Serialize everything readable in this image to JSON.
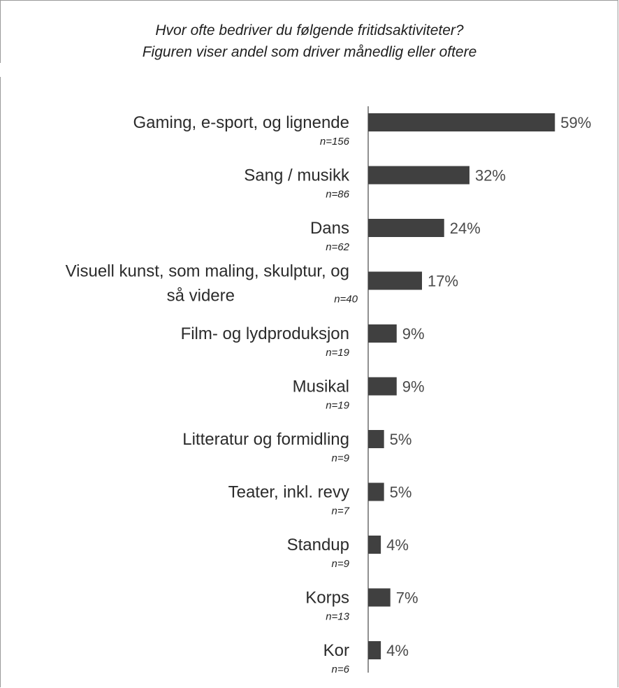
{
  "chart_data": {
    "type": "bar",
    "orientation": "horizontal",
    "title_lines": [
      "Hvor ofte bedriver du følgende fritidsaktiviteter?",
      "Figuren viser andel som driver månedlig eller oftere"
    ],
    "categories": [
      {
        "label_lines": [
          "Gaming, e-sport, og lignende"
        ],
        "n": "n=156",
        "value": 59,
        "value_label": "59%"
      },
      {
        "label_lines": [
          "Sang / musikk"
        ],
        "n": "n=86",
        "value": 32,
        "value_label": "32%"
      },
      {
        "label_lines": [
          "Dans"
        ],
        "n": "n=62",
        "value": 24,
        "value_label": "24%"
      },
      {
        "label_lines": [
          "Visuell kunst, som maling, skulptur, og",
          "så videre"
        ],
        "n": "n=40",
        "value": 17,
        "value_label": "17%"
      },
      {
        "label_lines": [
          "Film- og lydproduksjon"
        ],
        "n": "n=19",
        "value": 9,
        "value_label": "9%"
      },
      {
        "label_lines": [
          "Musikal"
        ],
        "n": "n=19",
        "value": 9,
        "value_label": "9%"
      },
      {
        "label_lines": [
          "Litteratur og formidling"
        ],
        "n": "n=9",
        "value": 5,
        "value_label": "5%"
      },
      {
        "label_lines": [
          "Teater, inkl. revy"
        ],
        "n": "n=7",
        "value": 5,
        "value_label": "5%"
      },
      {
        "label_lines": [
          "Standup"
        ],
        "n": "n=9",
        "value": 4,
        "value_label": "4%"
      },
      {
        "label_lines": [
          "Korps"
        ],
        "n": "n=13",
        "value": 7,
        "value_label": "7%"
      },
      {
        "label_lines": [
          "Kor"
        ],
        "n": "n=6",
        "value": 4,
        "value_label": "4%"
      }
    ],
    "xlim": [
      0,
      100
    ],
    "grid": false,
    "legend": "none",
    "bar_color": "#404040"
  }
}
